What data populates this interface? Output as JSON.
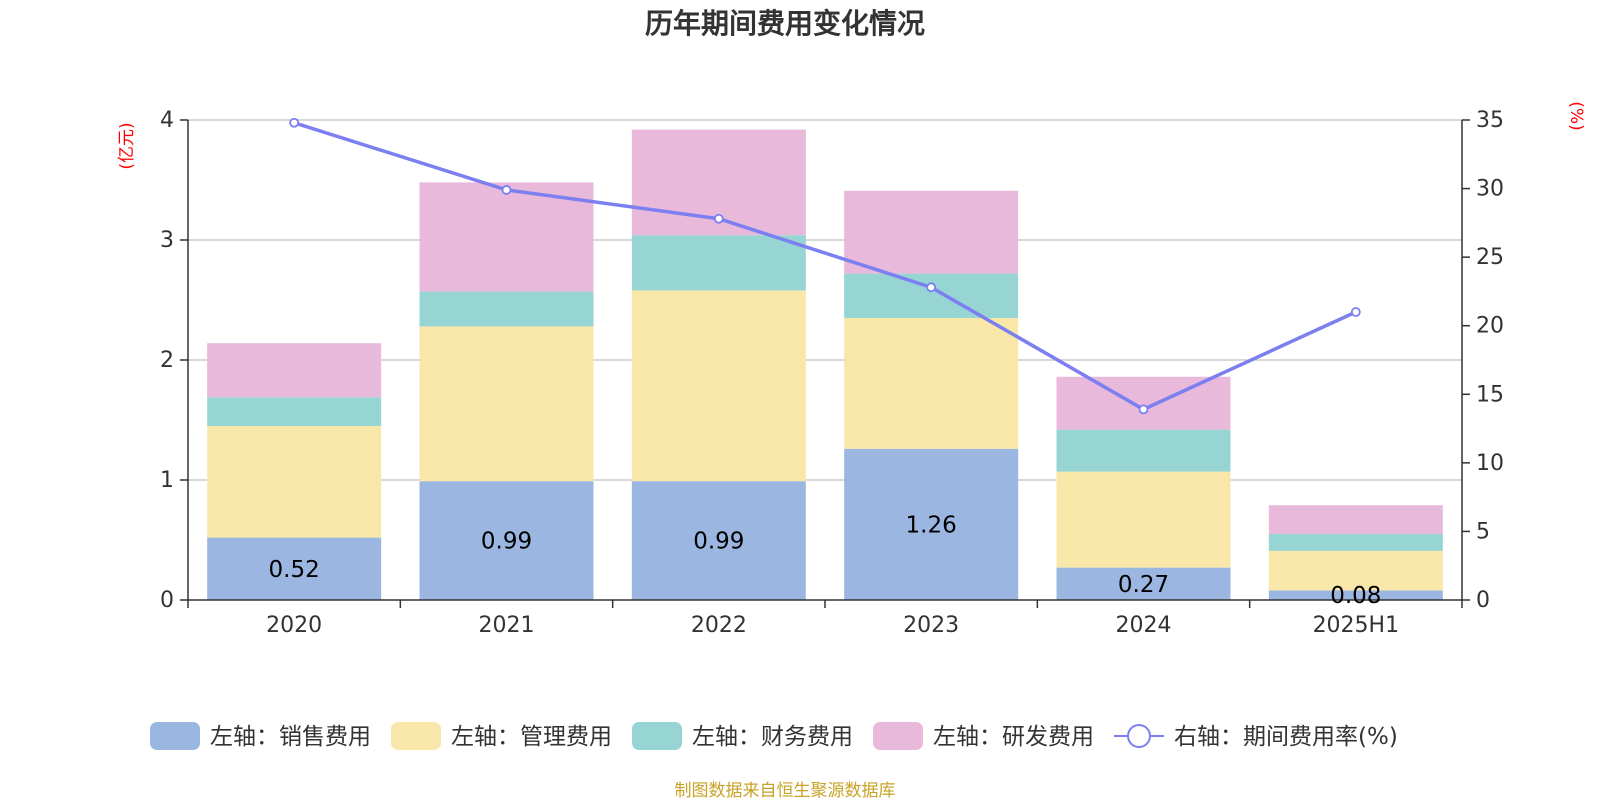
{
  "chart_data": {
    "type": "bar",
    "stacked": true,
    "title": "历年期间费用变化情况",
    "categories": [
      "2020",
      "2021",
      "2022",
      "2023",
      "2024",
      "2025H1"
    ],
    "left_axis": {
      "unit_label": "(亿元)",
      "ylim": [
        0,
        4
      ],
      "ticks": [
        "0",
        "1",
        "2",
        "3",
        "4"
      ]
    },
    "right_axis": {
      "unit_label": "(%)",
      "ylim": [
        0,
        35
      ],
      "ticks": [
        "0",
        "5",
        "10",
        "15",
        "20",
        "25",
        "30",
        "35"
      ]
    },
    "series": [
      {
        "name": "左轴：销售费用",
        "axis": "left",
        "color": "#9bb7e1",
        "values": [
          0.52,
          0.99,
          0.99,
          1.26,
          0.27,
          0.08
        ],
        "labels": [
          "0.52",
          "0.99",
          "0.99",
          "1.26",
          "0.27",
          "0.08"
        ]
      },
      {
        "name": "左轴：管理费用",
        "axis": "left",
        "color": "#f8e7a9",
        "values": [
          0.93,
          1.29,
          1.59,
          1.09,
          0.8,
          0.33
        ]
      },
      {
        "name": "左轴：财务费用",
        "axis": "left",
        "color": "#97d4d4",
        "values": [
          0.24,
          0.29,
          0.46,
          0.37,
          0.35,
          0.14
        ]
      },
      {
        "name": "左轴：研发费用",
        "axis": "left",
        "color": "#e8b9da",
        "values": [
          0.45,
          0.91,
          0.88,
          0.69,
          0.44,
          0.24
        ]
      },
      {
        "name": "右轴：期间费用率(%)",
        "axis": "right",
        "type": "line",
        "color": "#7b7ff0",
        "values": [
          34.8,
          29.9,
          27.8,
          22.8,
          13.9,
          21.0
        ]
      }
    ],
    "grid": true,
    "legend_position": "bottom-center"
  },
  "source_text": "制图数据来自恒生聚源数据库"
}
